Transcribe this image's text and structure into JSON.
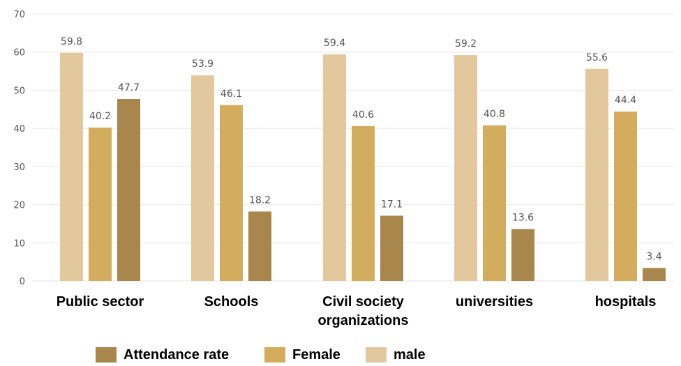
{
  "chart_data": {
    "type": "bar",
    "categories": [
      [
        "Public sector"
      ],
      [
        "Schools"
      ],
      [
        "Civil society",
        "organizations"
      ],
      [
        "universities"
      ],
      [
        "hospitals"
      ]
    ],
    "series": [
      {
        "name": "male",
        "color": "#e3c89e",
        "values": [
          59.8,
          53.9,
          59.4,
          59.2,
          55.6
        ]
      },
      {
        "name": "Female",
        "color": "#d4ac5e",
        "values": [
          40.2,
          46.1,
          40.6,
          40.8,
          44.4
        ]
      },
      {
        "name": "Attendance rate",
        "color": "#a9864b",
        "values": [
          47.7,
          18.2,
          17.1,
          13.6,
          3.4
        ]
      }
    ],
    "data_labels": [
      [
        "59.8",
        "53.9",
        "59.4",
        "59.2",
        "55.6"
      ],
      [
        "40.2",
        "46.1",
        "40.6",
        "40.8",
        "44.4"
      ],
      [
        "47.7",
        "18.2",
        "17.1",
        "13.6",
        "3.4"
      ]
    ],
    "y_ticks": [
      "0",
      "10",
      "20",
      "30",
      "40",
      "50",
      "60",
      "70"
    ],
    "ylim": [
      0,
      70
    ],
    "grid": true,
    "legend_position": "bottom",
    "title": "",
    "xlabel": "",
    "ylabel": ""
  },
  "legend": [
    {
      "label": "Attendance rate",
      "color": "#a9864b"
    },
    {
      "label": "Female",
      "color": "#d4ac5e"
    },
    {
      "label": "male",
      "color": "#e3c89e"
    }
  ]
}
